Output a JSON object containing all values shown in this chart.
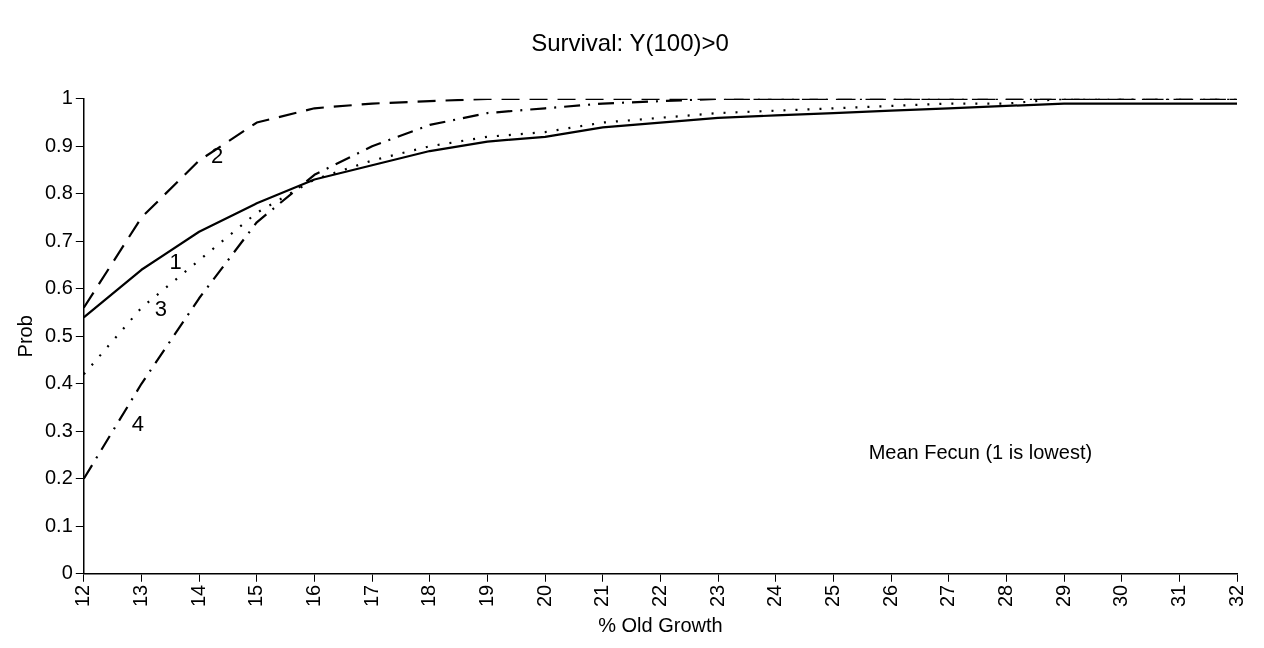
{
  "chart_data": {
    "type": "line",
    "title": "Survival: Y(100)>0",
    "xlabel": "% Old Growth",
    "ylabel": "Prob",
    "x": [
      12,
      13,
      14,
      15,
      16,
      17,
      18,
      19,
      20,
      21,
      22,
      23,
      24,
      25,
      26,
      27,
      28,
      29,
      30,
      31,
      32
    ],
    "series": [
      {
        "name": "1",
        "color": "#000000",
        "line_style": "solid",
        "values": [
          0.54,
          0.64,
          0.72,
          0.78,
          0.83,
          0.86,
          0.89,
          0.91,
          0.92,
          0.94,
          0.95,
          0.96,
          0.965,
          0.97,
          0.975,
          0.98,
          0.985,
          0.99,
          0.99,
          0.99,
          0.99
        ]
      },
      {
        "name": "2",
        "color": "#000000",
        "line_style": "dashed",
        "values": [
          0.56,
          0.75,
          0.87,
          0.95,
          0.98,
          0.99,
          0.995,
          1,
          1,
          1,
          1,
          1,
          1,
          1,
          1,
          1,
          1,
          1,
          1,
          1,
          1
        ]
      },
      {
        "name": "3",
        "color": "#000000",
        "line_style": "dotted",
        "values": [
          0.42,
          0.56,
          0.66,
          0.76,
          0.83,
          0.87,
          0.9,
          0.92,
          0.93,
          0.95,
          0.96,
          0.97,
          0.975,
          0.98,
          0.985,
          0.99,
          0.99,
          1,
          1,
          1,
          1
        ]
      },
      {
        "name": "4",
        "color": "#000000",
        "line_style": "dashdot",
        "values": [
          0.2,
          0.4,
          0.58,
          0.74,
          0.84,
          0.9,
          0.945,
          0.97,
          0.98,
          0.99,
          0.995,
          1,
          1,
          1,
          1,
          1,
          1,
          1,
          1,
          1,
          1
        ]
      }
    ],
    "xlim": [
      12,
      32
    ],
    "xticks": [
      12,
      13,
      14,
      15,
      16,
      17,
      18,
      19,
      20,
      21,
      22,
      23,
      24,
      25,
      26,
      27,
      28,
      29,
      30,
      31,
      32
    ],
    "ylim": [
      0,
      1
    ],
    "yticks": [
      0,
      0.1,
      0.2,
      0.3,
      0.4,
      0.5,
      0.6,
      0.7,
      0.8,
      0.9,
      1
    ],
    "annotations": [
      "Mean Fecun (1 is lowest)"
    ],
    "grid": false,
    "legend": false,
    "marker": "none"
  }
}
